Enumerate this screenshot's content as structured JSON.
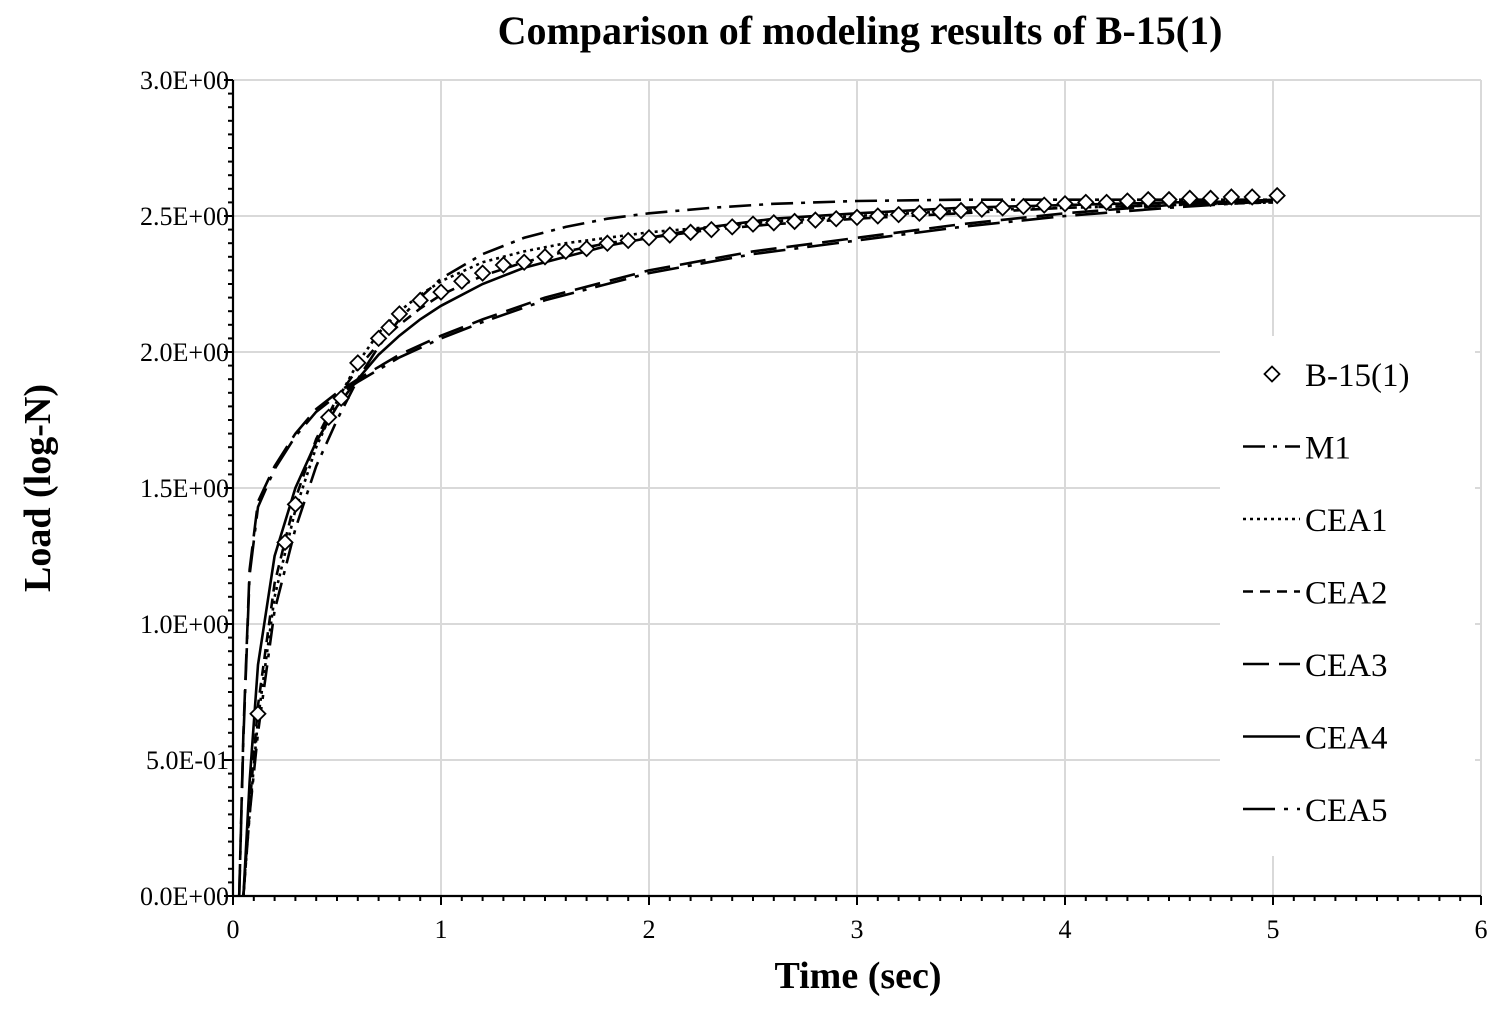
{
  "chart_data": {
    "type": "line",
    "title": "Comparison of modeling results of B-15(1)",
    "xlabel": "Time (sec)",
    "ylabel": "Load (log-N)",
    "xlim": [
      0,
      6
    ],
    "ylim": [
      0,
      3
    ],
    "x_ticks": [
      0,
      1,
      2,
      3,
      4,
      5,
      6
    ],
    "x_tick_labels": [
      "0",
      "1",
      "2",
      "3",
      "4",
      "5",
      "6"
    ],
    "y_ticks": [
      0,
      0.5,
      1,
      1.5,
      2,
      2.5,
      3
    ],
    "y_tick_labels": [
      "0.0E+00",
      "5.0E-01",
      "1.0E+00",
      "1.5E+00",
      "2.0E+00",
      "2.5E+00",
      "3.0E+00"
    ],
    "grid": true,
    "legend_position": "right",
    "series": [
      {
        "name": "B-15(1)",
        "style": "marker-diamond",
        "x": [
          0.12,
          0.25,
          0.3,
          0.46,
          0.52,
          0.6,
          0.7,
          0.75,
          0.8,
          0.9,
          1.0,
          1.1,
          1.2,
          1.3,
          1.4,
          1.5,
          1.6,
          1.7,
          1.8,
          1.9,
          2.0,
          2.1,
          2.2,
          2.3,
          2.4,
          2.5,
          2.6,
          2.7,
          2.8,
          2.9,
          3.0,
          3.1,
          3.2,
          3.3,
          3.4,
          3.5,
          3.6,
          3.7,
          3.8,
          3.9,
          4.0,
          4.1,
          4.2,
          4.3,
          4.4,
          4.5,
          4.6,
          4.7,
          4.8,
          4.9,
          5.02
        ],
        "y": [
          0.67,
          1.3,
          1.44,
          1.76,
          1.83,
          1.96,
          2.05,
          2.09,
          2.14,
          2.19,
          2.22,
          2.26,
          2.29,
          2.32,
          2.33,
          2.35,
          2.37,
          2.38,
          2.4,
          2.41,
          2.42,
          2.43,
          2.44,
          2.45,
          2.46,
          2.47,
          2.475,
          2.48,
          2.485,
          2.49,
          2.495,
          2.5,
          2.505,
          2.51,
          2.515,
          2.52,
          2.525,
          2.53,
          2.535,
          2.54,
          2.545,
          2.55,
          2.55,
          2.555,
          2.56,
          2.56,
          2.565,
          2.565,
          2.57,
          2.57,
          2.575
        ]
      },
      {
        "name": "M1",
        "style": "dash-dot",
        "x": [
          0.05,
          0.08,
          0.12,
          0.2,
          0.3,
          0.4,
          0.5,
          0.6,
          0.7,
          0.8,
          0.9,
          1.0,
          1.2,
          1.4,
          1.6,
          1.8,
          2.0,
          2.3,
          2.6,
          3.0,
          3.5,
          4.0,
          4.5,
          5.0
        ],
        "y": [
          0.0,
          0.3,
          0.6,
          1.05,
          1.35,
          1.58,
          1.75,
          1.9,
          2.02,
          2.12,
          2.2,
          2.27,
          2.36,
          2.42,
          2.46,
          2.49,
          2.51,
          2.53,
          2.545,
          2.555,
          2.56,
          2.56,
          2.56,
          2.56
        ]
      },
      {
        "name": "CEA1",
        "style": "dotted",
        "x": [
          0.05,
          0.08,
          0.12,
          0.2,
          0.3,
          0.4,
          0.5,
          0.6,
          0.7,
          0.8,
          0.9,
          1.0,
          1.2,
          1.4,
          1.6,
          1.8,
          2.0,
          2.3,
          2.6,
          3.0,
          3.5,
          4.0,
          4.5,
          5.0
        ],
        "y": [
          0.0,
          0.3,
          0.65,
          1.1,
          1.42,
          1.65,
          1.82,
          1.96,
          2.07,
          2.15,
          2.21,
          2.26,
          2.33,
          2.37,
          2.4,
          2.42,
          2.44,
          2.46,
          2.48,
          2.5,
          2.52,
          2.53,
          2.54,
          2.55
        ]
      },
      {
        "name": "CEA2",
        "style": "short-dash",
        "x": [
          0.05,
          0.08,
          0.12,
          0.2,
          0.3,
          0.4,
          0.5,
          0.6,
          0.7,
          0.8,
          0.9,
          1.0,
          1.2,
          1.4,
          1.6,
          1.8,
          2.0,
          2.3,
          2.6,
          3.0,
          3.5,
          4.0,
          4.5,
          5.0
        ],
        "y": [
          0.0,
          0.33,
          0.7,
          1.15,
          1.46,
          1.68,
          1.83,
          1.94,
          2.03,
          2.1,
          2.16,
          2.21,
          2.28,
          2.33,
          2.37,
          2.4,
          2.42,
          2.45,
          2.47,
          2.49,
          2.51,
          2.53,
          2.54,
          2.55
        ]
      },
      {
        "name": "CEA3",
        "style": "long-dash",
        "x": [
          0.03,
          0.05,
          0.08,
          0.12,
          0.2,
          0.3,
          0.4,
          0.5,
          0.6,
          0.8,
          1.0,
          1.2,
          1.5,
          2.0,
          2.5,
          3.0,
          3.5,
          4.0,
          4.5,
          5.0
        ],
        "y": [
          0.0,
          0.6,
          1.2,
          1.45,
          1.58,
          1.7,
          1.79,
          1.85,
          1.9,
          1.99,
          2.06,
          2.12,
          2.2,
          2.3,
          2.37,
          2.42,
          2.47,
          2.51,
          2.54,
          2.56
        ]
      },
      {
        "name": "CEA4",
        "style": "solid",
        "x": [
          0.05,
          0.08,
          0.12,
          0.2,
          0.3,
          0.4,
          0.5,
          0.6,
          0.7,
          0.8,
          0.9,
          1.0,
          1.2,
          1.4,
          1.6,
          1.8,
          2.0,
          2.3,
          2.6,
          3.0,
          3.5,
          4.0,
          4.5,
          5.0
        ],
        "y": [
          0.0,
          0.42,
          0.85,
          1.25,
          1.5,
          1.67,
          1.8,
          1.9,
          1.99,
          2.06,
          2.12,
          2.17,
          2.25,
          2.31,
          2.35,
          2.39,
          2.42,
          2.46,
          2.49,
          2.51,
          2.53,
          2.54,
          2.55,
          2.555
        ]
      },
      {
        "name": "CEA5",
        "style": "dash-dot-long",
        "x": [
          0.03,
          0.05,
          0.08,
          0.12,
          0.2,
          0.3,
          0.4,
          0.5,
          0.6,
          0.8,
          1.0,
          1.2,
          1.5,
          2.0,
          2.5,
          3.0,
          3.5,
          4.0,
          4.5,
          5.0
        ],
        "y": [
          0.0,
          0.58,
          1.18,
          1.43,
          1.57,
          1.69,
          1.78,
          1.84,
          1.89,
          1.98,
          2.05,
          2.11,
          2.19,
          2.29,
          2.36,
          2.41,
          2.46,
          2.5,
          2.53,
          2.555
        ]
      }
    ]
  }
}
